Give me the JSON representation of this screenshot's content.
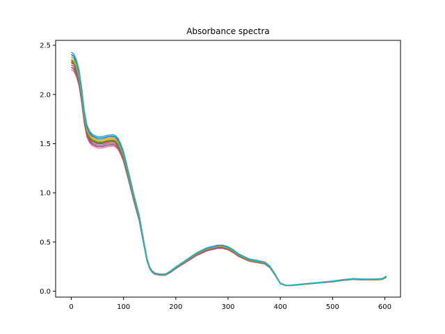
{
  "chart_data": {
    "type": "line",
    "title": "Absorbance spectra",
    "xlabel": "",
    "ylabel": "",
    "xlim": [
      -30,
      630
    ],
    "ylim": [
      -0.06,
      2.55
    ],
    "xticks": [
      0,
      100,
      200,
      300,
      400,
      500,
      600
    ],
    "xtick_labels": [
      "0",
      "100",
      "200",
      "300",
      "400",
      "500",
      "600"
    ],
    "yticks": [
      0.0,
      0.5,
      1.0,
      1.5,
      2.0,
      2.5
    ],
    "ytick_labels": [
      "0.0",
      "0.5",
      "1.0",
      "1.5",
      "2.0",
      "2.5"
    ],
    "grid": false,
    "legend": false,
    "series_colors": [
      "#e377c2",
      "#8c564b",
      "#9467bd",
      "#d62728",
      "#7f7f7f",
      "#2ca02c",
      "#bcbd22",
      "#ff7f0e",
      "#1f77b4",
      "#17becf"
    ],
    "series_scales": [
      0.955,
      0.965,
      0.975,
      0.985,
      0.99,
      0.995,
      1.0,
      1.01,
      1.02,
      1.03
    ],
    "base_spectrum": {
      "x": [
        0,
        5,
        10,
        15,
        20,
        25,
        30,
        35,
        40,
        50,
        60,
        70,
        80,
        85,
        90,
        95,
        100,
        110,
        120,
        130,
        140,
        145,
        150,
        155,
        160,
        170,
        180,
        190,
        200,
        220,
        240,
        260,
        280,
        290,
        300,
        310,
        320,
        340,
        360,
        370,
        380,
        390,
        400,
        410,
        420,
        440,
        460,
        480,
        500,
        520,
        540,
        560,
        580,
        595,
        600,
        603
      ],
      "y": [
        2.36,
        2.34,
        2.28,
        2.18,
        2.0,
        1.78,
        1.64,
        1.58,
        1.55,
        1.525,
        1.525,
        1.54,
        1.545,
        1.535,
        1.505,
        1.45,
        1.38,
        1.17,
        0.95,
        0.75,
        0.46,
        0.32,
        0.24,
        0.2,
        0.18,
        0.17,
        0.17,
        0.2,
        0.24,
        0.31,
        0.38,
        0.43,
        0.455,
        0.455,
        0.44,
        0.41,
        0.37,
        0.32,
        0.3,
        0.29,
        0.25,
        0.17,
        0.08,
        0.06,
        0.06,
        0.07,
        0.08,
        0.09,
        0.1,
        0.115,
        0.125,
        0.12,
        0.12,
        0.125,
        0.14,
        0.15
      ]
    }
  }
}
